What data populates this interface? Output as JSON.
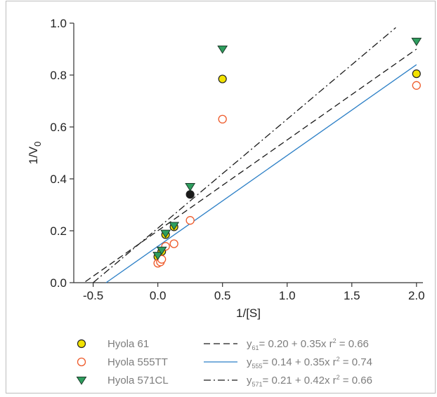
{
  "chart_data": {
    "type": "scatter",
    "xlabel": "1/[S]",
    "ylabel_main": "1/V",
    "ylabel_sub": "0",
    "xlim": [
      -0.65,
      2.05
    ],
    "ylim": [
      0.0,
      1.0
    ],
    "xticks": [
      -0.5,
      0.0,
      0.5,
      1.0,
      1.5,
      2.0
    ],
    "xtick_labels": [
      "-0.5",
      "0.0",
      "0.5",
      "1.0",
      "1.5",
      "2.0"
    ],
    "yticks": [
      0.0,
      0.2,
      0.4,
      0.6,
      0.8,
      1.0
    ],
    "ytick_labels": [
      "0.0",
      "0.2",
      "0.4",
      "0.6",
      "0.8",
      "1.0"
    ],
    "grid": false,
    "series": [
      {
        "name": "Hyola 61",
        "marker": "circle-filled",
        "color": "#f2e200",
        "edge": "#222222",
        "points": [
          [
            0.0,
            0.1
          ],
          [
            0.03,
            0.12
          ],
          [
            0.06,
            0.185
          ],
          [
            0.125,
            0.215
          ],
          [
            0.25,
            0.34
          ],
          [
            0.5,
            0.785
          ],
          [
            2.0,
            0.805
          ]
        ],
        "highlight_index": 4,
        "highlight_color": "#1a1a1a"
      },
      {
        "name": "Hyola 555TT",
        "marker": "circle-open",
        "color": "#ee5a2a",
        "points": [
          [
            0.0,
            0.075
          ],
          [
            0.02,
            0.08
          ],
          [
            0.03,
            0.09
          ],
          [
            0.06,
            0.14
          ],
          [
            0.125,
            0.15
          ],
          [
            0.25,
            0.24
          ],
          [
            0.5,
            0.63
          ],
          [
            2.0,
            0.76
          ]
        ]
      },
      {
        "name": "Hyola 571CL",
        "marker": "triangle-down",
        "color": "#2e9e5e",
        "edge": "#1d3b2a",
        "points": [
          [
            0.0,
            0.105
          ],
          [
            0.03,
            0.125
          ],
          [
            0.06,
            0.19
          ],
          [
            0.125,
            0.22
          ],
          [
            0.25,
            0.37
          ],
          [
            0.5,
            0.9
          ],
          [
            2.0,
            0.93
          ]
        ]
      }
    ],
    "fits": [
      {
        "series": "Hyola 61",
        "intercept": 0.2,
        "slope": 0.35,
        "x_range": [
          -0.56,
          2.0
        ],
        "style": "dashed",
        "color": "#1a1a1a",
        "eq_sub": "61",
        "eq_text": "= 0.20 + 0.35x",
        "r2_value": "= 0.66"
      },
      {
        "series": "Hyola 555TT",
        "intercept": 0.14,
        "slope": 0.35,
        "x_range": [
          -0.4,
          2.0
        ],
        "style": "solid",
        "color": "#2b7fc6",
        "eq_sub": "555",
        "eq_text": "= 0.14 + 0.35x",
        "r2_value": "= 0.74"
      },
      {
        "series": "Hyola 571CL",
        "intercept": 0.21,
        "slope": 0.42,
        "x_range": [
          -0.5,
          1.84
        ],
        "style": "dashdot",
        "color": "#1a1a1a",
        "eq_sub": "571",
        "eq_text": "= 0.21 + 0.42x",
        "r2_value": "= 0.66"
      }
    ],
    "legend_position": "bottom"
  }
}
